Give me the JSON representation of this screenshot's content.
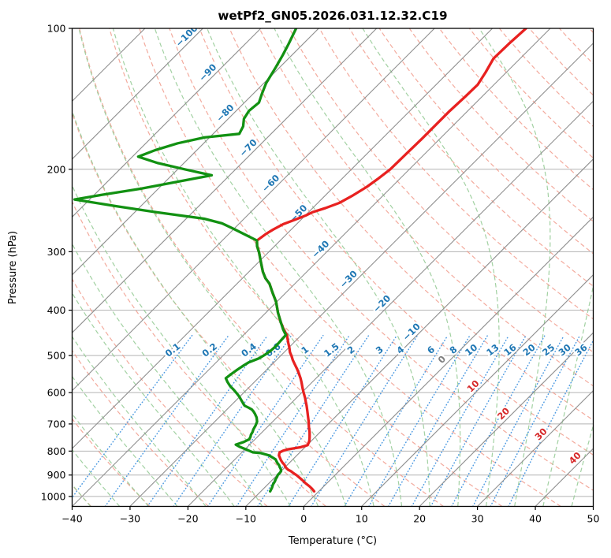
{
  "title": "wetPf2_GN05.2026.031.12.32.C19",
  "axes": {
    "x_label": "Temperature (°C)",
    "y_label": "Pressure (hPa)",
    "x_ticks": [
      -40,
      -30,
      -20,
      -10,
      0,
      10,
      20,
      30,
      40,
      50
    ],
    "y_ticks": [
      100,
      200,
      300,
      400,
      500,
      600,
      700,
      800,
      900,
      1000
    ],
    "x_range": [
      -40,
      50
    ],
    "p_range": [
      100,
      1050
    ],
    "skew_degrees": 45,
    "grid": true
  },
  "colors": {
    "temperature": "#e82120",
    "dewpoint": "#129112",
    "isotherm": "#8f8f8f",
    "isobar": "#b3b3b3",
    "dry_adiabat": "#f19b8c",
    "moist_adiabat": "#98cc98",
    "mixing_ratio": "#4596e0",
    "label_negative": "#1f77b4",
    "label_zero": "#7f7f7f",
    "label_positive": "#d62728",
    "axis_text": "#000000"
  },
  "chart_data": {
    "type": "line",
    "variant": "skew-t-log-p",
    "title": "wetPf2_GN05.2026.031.12.32.C19",
    "xlabel": "Temperature (°C)",
    "ylabel": "Pressure (hPa)",
    "isotherms": {
      "start": -110,
      "end": 50,
      "step": 10,
      "labels": [
        [
          -100,
          106
        ],
        [
          -90,
          127
        ],
        [
          -80,
          155
        ],
        [
          -70,
          184
        ],
        [
          -60,
          219
        ],
        [
          -50,
          254
        ],
        [
          -40,
          303
        ],
        [
          -30,
          351
        ],
        [
          -20,
          396
        ],
        [
          -10,
          455
        ],
        [
          0,
          521
        ],
        [
          10,
          594
        ],
        [
          20,
          680
        ],
        [
          30,
          752
        ],
        [
          40,
          846
        ]
      ]
    },
    "dry_adiabats": {
      "start": -50,
      "end": 190,
      "step": 10
    },
    "moist_adiabats": {
      "start": -60,
      "end": 45,
      "step": 5
    },
    "mixing_ratio": {
      "values": [
        0.1,
        0.2,
        0.4,
        0.6,
        1,
        1.5,
        2,
        3,
        4,
        6,
        8,
        10,
        13,
        16,
        20,
        25,
        30,
        36
      ],
      "label_pressure": 500,
      "top_pressure": 453
    },
    "series": [
      {
        "name": "temperature",
        "label": "Temperature (°C)",
        "points": [
          [
            100,
            -44.2
          ],
          [
            108,
            -44.5
          ],
          [
            116,
            -44.6
          ],
          [
            124,
            -43.6
          ],
          [
            132,
            -42.8
          ],
          [
            140,
            -42.9
          ],
          [
            150,
            -43.1
          ],
          [
            160,
            -43.1
          ],
          [
            172,
            -43.1
          ],
          [
            185,
            -43.2
          ],
          [
            200,
            -43.3
          ],
          [
            210,
            -43.8
          ],
          [
            218,
            -44.3
          ],
          [
            228,
            -45.3
          ],
          [
            236,
            -46.3
          ],
          [
            242,
            -47.8
          ],
          [
            247,
            -49.3
          ],
          [
            251,
            -49.9
          ],
          [
            257,
            -51.2
          ],
          [
            262,
            -52.3
          ],
          [
            269,
            -53.1
          ],
          [
            275,
            -53.6
          ],
          [
            284,
            -54.0
          ],
          [
            292,
            -53.0
          ],
          [
            301,
            -51.6
          ],
          [
            315,
            -49.7
          ],
          [
            331,
            -47.6
          ],
          [
            342,
            -46.0
          ],
          [
            351,
            -44.4
          ],
          [
            367,
            -42.3
          ],
          [
            384,
            -40.1
          ],
          [
            405,
            -37.9
          ],
          [
            426,
            -35.6
          ],
          [
            440,
            -34.0
          ],
          [
            452,
            -32.5
          ],
          [
            461,
            -31.7
          ],
          [
            470,
            -30.9
          ],
          [
            481,
            -29.9
          ],
          [
            492,
            -29.0
          ],
          [
            501,
            -28.1
          ],
          [
            511,
            -27.2
          ],
          [
            522,
            -26.1
          ],
          [
            534,
            -24.9
          ],
          [
            546,
            -23.8
          ],
          [
            559,
            -22.7
          ],
          [
            572,
            -21.7
          ],
          [
            586,
            -20.7
          ],
          [
            601,
            -19.6
          ],
          [
            616,
            -18.5
          ],
          [
            628,
            -17.7
          ],
          [
            640,
            -16.9
          ],
          [
            656,
            -15.9
          ],
          [
            673,
            -14.9
          ],
          [
            692,
            -13.8
          ],
          [
            711,
            -12.8
          ],
          [
            729,
            -11.8
          ],
          [
            748,
            -10.9
          ],
          [
            762,
            -10.3
          ],
          [
            777,
            -9.9
          ],
          [
            785,
            -10.8
          ],
          [
            793,
            -12.6
          ],
          [
            799,
            -13.2
          ],
          [
            805,
            -13.5
          ],
          [
            811,
            -13.3
          ],
          [
            817,
            -13.1
          ],
          [
            827,
            -12.5
          ],
          [
            837,
            -11.9
          ],
          [
            847,
            -11.2
          ],
          [
            856,
            -10.5
          ],
          [
            863,
            -10.1
          ],
          [
            870,
            -9.6
          ],
          [
            877,
            -9.0
          ],
          [
            883,
            -8.3
          ],
          [
            892,
            -7.5
          ],
          [
            901,
            -6.6
          ],
          [
            913,
            -5.6
          ],
          [
            925,
            -4.6
          ],
          [
            938,
            -3.6
          ],
          [
            951,
            -2.5
          ],
          [
            963,
            -1.6
          ],
          [
            975,
            -0.8
          ]
        ]
      },
      {
        "name": "dewpoint",
        "label": "Dewpoint (°C)",
        "points": [
          [
            100,
            -83.9
          ],
          [
            108,
            -82.5
          ],
          [
            114,
            -81.6
          ],
          [
            121,
            -80.7
          ],
          [
            131,
            -79.6
          ],
          [
            138,
            -78.5
          ],
          [
            144,
            -77.5
          ],
          [
            150,
            -77.8
          ],
          [
            156,
            -77.3
          ],
          [
            162,
            -76.1
          ],
          [
            168,
            -75.5
          ],
          [
            171,
            -80.9
          ],
          [
            176,
            -84.5
          ],
          [
            182,
            -87.2
          ],
          [
            188,
            -89.0
          ],
          [
            194,
            -84.5
          ],
          [
            200,
            -78.8
          ],
          [
            206,
            -73.1
          ],
          [
            212,
            -77.4
          ],
          [
            220,
            -83.0
          ],
          [
            227,
            -88.8
          ],
          [
            232,
            -92.6
          ],
          [
            240,
            -84.1
          ],
          [
            247,
            -76.3
          ],
          [
            255,
            -66.9
          ],
          [
            261,
            -63.0
          ],
          [
            268,
            -60.1
          ],
          [
            276,
            -57.0
          ],
          [
            284,
            -54.0
          ],
          [
            292,
            -53.0
          ],
          [
            301,
            -51.6
          ],
          [
            315,
            -49.7
          ],
          [
            331,
            -47.6
          ],
          [
            342,
            -46.0
          ],
          [
            351,
            -44.4
          ],
          [
            367,
            -42.3
          ],
          [
            384,
            -40.1
          ],
          [
            405,
            -37.9
          ],
          [
            426,
            -35.6
          ],
          [
            440,
            -34.1
          ],
          [
            452,
            -32.7
          ],
          [
            466,
            -32.6
          ],
          [
            478,
            -32.5
          ],
          [
            488,
            -32.6
          ],
          [
            498,
            -32.9
          ],
          [
            507,
            -33.3
          ],
          [
            517,
            -34.4
          ],
          [
            527,
            -34.8
          ],
          [
            537,
            -35.1
          ],
          [
            548,
            -35.4
          ],
          [
            559,
            -35.6
          ],
          [
            570,
            -34.6
          ],
          [
            581,
            -33.5
          ],
          [
            592,
            -32.2
          ],
          [
            604,
            -30.9
          ],
          [
            613,
            -30.0
          ],
          [
            622,
            -29.2
          ],
          [
            631,
            -28.4
          ],
          [
            640,
            -27.6
          ],
          [
            646,
            -26.6
          ],
          [
            652,
            -25.7
          ],
          [
            658,
            -25.1
          ],
          [
            665,
            -24.5
          ],
          [
            678,
            -23.5
          ],
          [
            692,
            -22.7
          ],
          [
            705,
            -22.3
          ],
          [
            719,
            -22.0
          ],
          [
            728,
            -21.7
          ],
          [
            738,
            -21.5
          ],
          [
            746,
            -21.2
          ],
          [
            755,
            -21.0
          ],
          [
            765,
            -21.5
          ],
          [
            775,
            -22.4
          ],
          [
            783,
            -21.4
          ],
          [
            792,
            -20.0
          ],
          [
            799,
            -19.0
          ],
          [
            805,
            -18.1
          ],
          [
            808,
            -16.6
          ],
          [
            817,
            -14.8
          ],
          [
            825,
            -13.9
          ],
          [
            833,
            -13.0
          ],
          [
            841,
            -12.5
          ],
          [
            849,
            -12.0
          ],
          [
            857,
            -11.4
          ],
          [
            866,
            -10.9
          ],
          [
            874,
            -10.4
          ],
          [
            883,
            -10.0
          ],
          [
            891,
            -9.9
          ],
          [
            900,
            -9.9
          ],
          [
            908,
            -9.7
          ],
          [
            916,
            -9.6
          ],
          [
            929,
            -9.3
          ],
          [
            943,
            -9.1
          ],
          [
            958,
            -8.7
          ],
          [
            975,
            -8.4
          ]
        ]
      }
    ]
  }
}
